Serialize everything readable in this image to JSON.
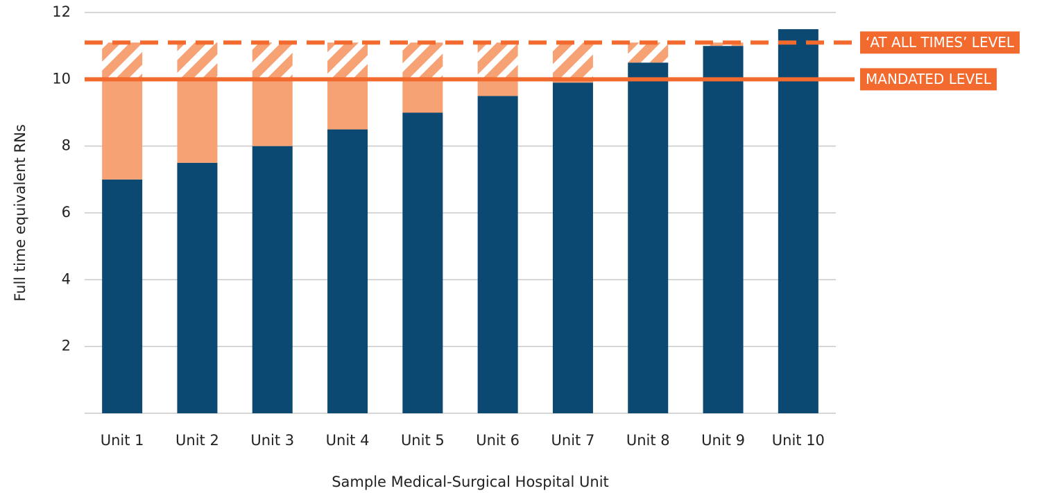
{
  "chart_data": {
    "type": "stacked_bar",
    "x_label": "Sample Medical-Surgical Hospital Unit",
    "y_label": "Full time equivalent RNs",
    "categories": [
      "Unit 1",
      "Unit 2",
      "Unit 3",
      "Unit 4",
      "Unit 5",
      "Unit 6",
      "Unit 7",
      "Unit 8",
      "Unit 9",
      "Unit 10"
    ],
    "series": [
      {
        "color": "#0b4872",
        "values": [
          7,
          7.5,
          8,
          8.5,
          9,
          9.5,
          9.9,
          10.5,
          11,
          11.5
        ]
      },
      {
        "color": "#f7a274",
        "values": [
          3,
          2.5,
          2,
          1.5,
          1,
          0.5,
          0.1,
          0,
          0,
          0
        ]
      },
      {
        "color": "#f7a274",
        "pattern": "hatch",
        "values": [
          1.1,
          1.1,
          1.1,
          1.1,
          1.1,
          1.1,
          1.1,
          0.6,
          0.1,
          0
        ]
      }
    ],
    "ylim": [
      0,
      12
    ],
    "yticks": [
      2,
      4,
      6,
      8,
      10,
      12
    ],
    "grid": true,
    "reference_lines": [
      {
        "value": 11.1,
        "label": "‘AT ALL TIMES’ LEVEL",
        "style": "dashed",
        "color": "#f26a2e"
      },
      {
        "value": 10,
        "label": "MANDATED LEVEL",
        "style": "solid",
        "color": "#f26a2e"
      }
    ]
  }
}
